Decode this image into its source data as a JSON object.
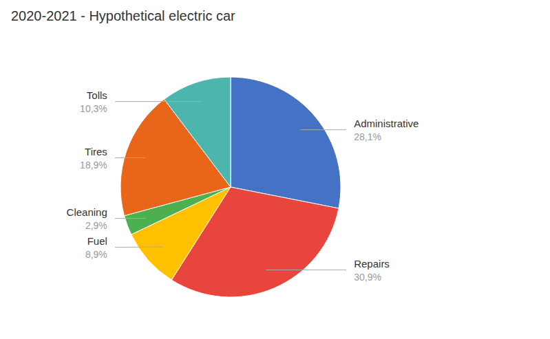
{
  "chart_data": {
    "type": "pie",
    "title": "2020-2021 - Hypothetical electric car",
    "categories": [
      "Administrative",
      "Repairs",
      "Fuel",
      "Cleaning",
      "Tires",
      "Tolls"
    ],
    "values": [
      28.1,
      30.9,
      8.9,
      2.9,
      18.9,
      10.3
    ],
    "value_labels": [
      "28,1%",
      "30,9%",
      "8,9%",
      "2,9%",
      "18,9%",
      "10,3%"
    ],
    "colors": [
      "#4472C4",
      "#E8453C",
      "#FFC000",
      "#4CAF50",
      "#E8651A",
      "#4DB6AC"
    ]
  }
}
